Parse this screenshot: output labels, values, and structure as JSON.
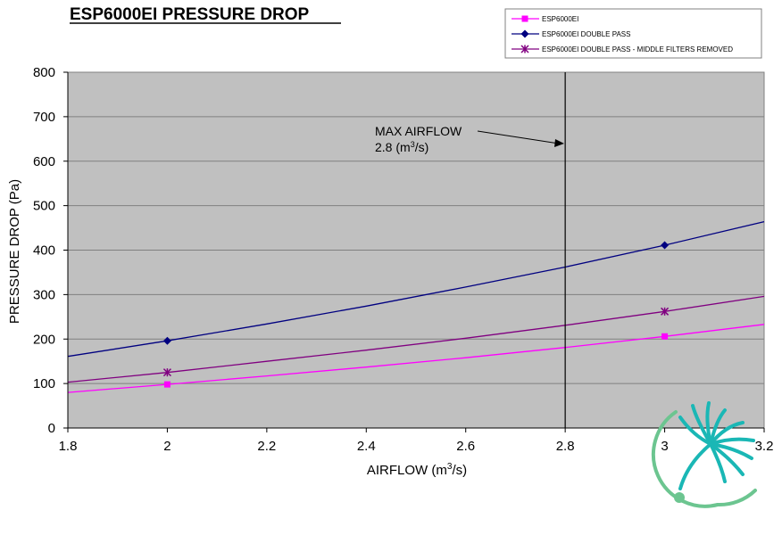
{
  "chart_data": {
    "type": "line",
    "title": "ESP6000EI PRESSURE DROP",
    "xlabel": "AIRFLOW (m",
    "xlabel_sup": "3",
    "xlabel_end": "/s)",
    "ylabel": "PRESSURE DROP (Pa)",
    "xlim": [
      1.8,
      3.2
    ],
    "ylim": [
      0,
      800
    ],
    "x_ticks": [
      "1.8",
      "2",
      "2.2",
      "2.4",
      "2.6",
      "2.8",
      "3",
      "3.2"
    ],
    "y_ticks": [
      "0",
      "100",
      "200",
      "300",
      "400",
      "500",
      "600",
      "700",
      "800"
    ],
    "grid": "horizontal",
    "plot_background": "#c0c0c0",
    "legend_position": "top-right",
    "series": [
      {
        "name": "ESP6000EI",
        "color": "#ff00ff",
        "marker": "square",
        "points": [
          [
            2,
            98
          ],
          [
            3,
            206
          ]
        ],
        "curve": [
          [
            1.8,
            80
          ],
          [
            2.0,
            98
          ],
          [
            2.2,
            117
          ],
          [
            2.4,
            137
          ],
          [
            2.6,
            158
          ],
          [
            2.8,
            181
          ],
          [
            3.0,
            206
          ],
          [
            3.2,
            233
          ]
        ]
      },
      {
        "name": "ESP6000EI DOUBLE PASS",
        "color": "#000080",
        "marker": "diamond",
        "points": [
          [
            2,
            196
          ],
          [
            3,
            411
          ]
        ],
        "curve": [
          [
            1.8,
            161
          ],
          [
            2.0,
            196
          ],
          [
            2.2,
            234
          ],
          [
            2.4,
            274
          ],
          [
            2.6,
            317
          ],
          [
            2.8,
            362
          ],
          [
            3.0,
            411
          ],
          [
            3.2,
            464
          ]
        ]
      },
      {
        "name": "ESP6000EI DOUBLE PASS - MIDDLE FILTERS REMOVED",
        "color": "#800080",
        "marker": "star",
        "points": [
          [
            2,
            125
          ],
          [
            3,
            262
          ]
        ],
        "curve": [
          [
            1.8,
            103
          ],
          [
            2.0,
            125
          ],
          [
            2.2,
            150
          ],
          [
            2.4,
            175
          ],
          [
            2.6,
            202
          ],
          [
            2.8,
            231
          ],
          [
            3.0,
            262
          ],
          [
            3.2,
            296
          ]
        ]
      }
    ],
    "vertical_line": {
      "x": 2.8,
      "color": "#000000"
    },
    "annotation": {
      "line1": "MAX AIRFLOW",
      "line2_prefix": "2.8 (m",
      "line2_sup": "3",
      "line2_suffix": "/s)",
      "arrow_target": [
        2.8,
        640
      ]
    }
  },
  "logo": {
    "name": "logo-mark",
    "colors": {
      "teal": "#1ab7b5",
      "green": "#6cc590"
    }
  }
}
